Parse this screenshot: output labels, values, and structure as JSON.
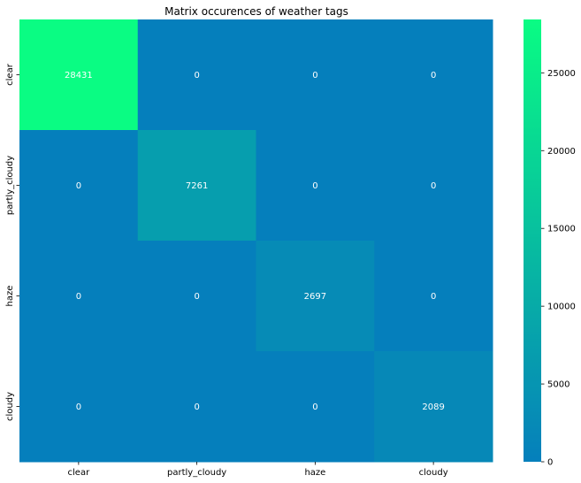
{
  "chart_data": {
    "type": "heatmap",
    "title": "Matrix occurences of weather tags",
    "xlabel": "",
    "ylabel": "",
    "x_categories": [
      "clear",
      "partly_cloudy",
      "haze",
      "cloudy"
    ],
    "y_categories": [
      "clear",
      "partly_cloudy",
      "haze",
      "cloudy"
    ],
    "values": [
      [
        28431,
        0,
        0,
        0
      ],
      [
        0,
        7261,
        0,
        0
      ],
      [
        0,
        0,
        2697,
        0
      ],
      [
        0,
        0,
        0,
        2089
      ]
    ],
    "colormap": "winter",
    "color_low": "#0000ff",
    "color_high": "#00ff80",
    "colorbar": {
      "min": 0,
      "max": 28431,
      "ticks": [
        0,
        5000,
        10000,
        15000,
        20000,
        25000
      ]
    },
    "annotations": true,
    "grid": false,
    "legend": "colorbar-right"
  }
}
